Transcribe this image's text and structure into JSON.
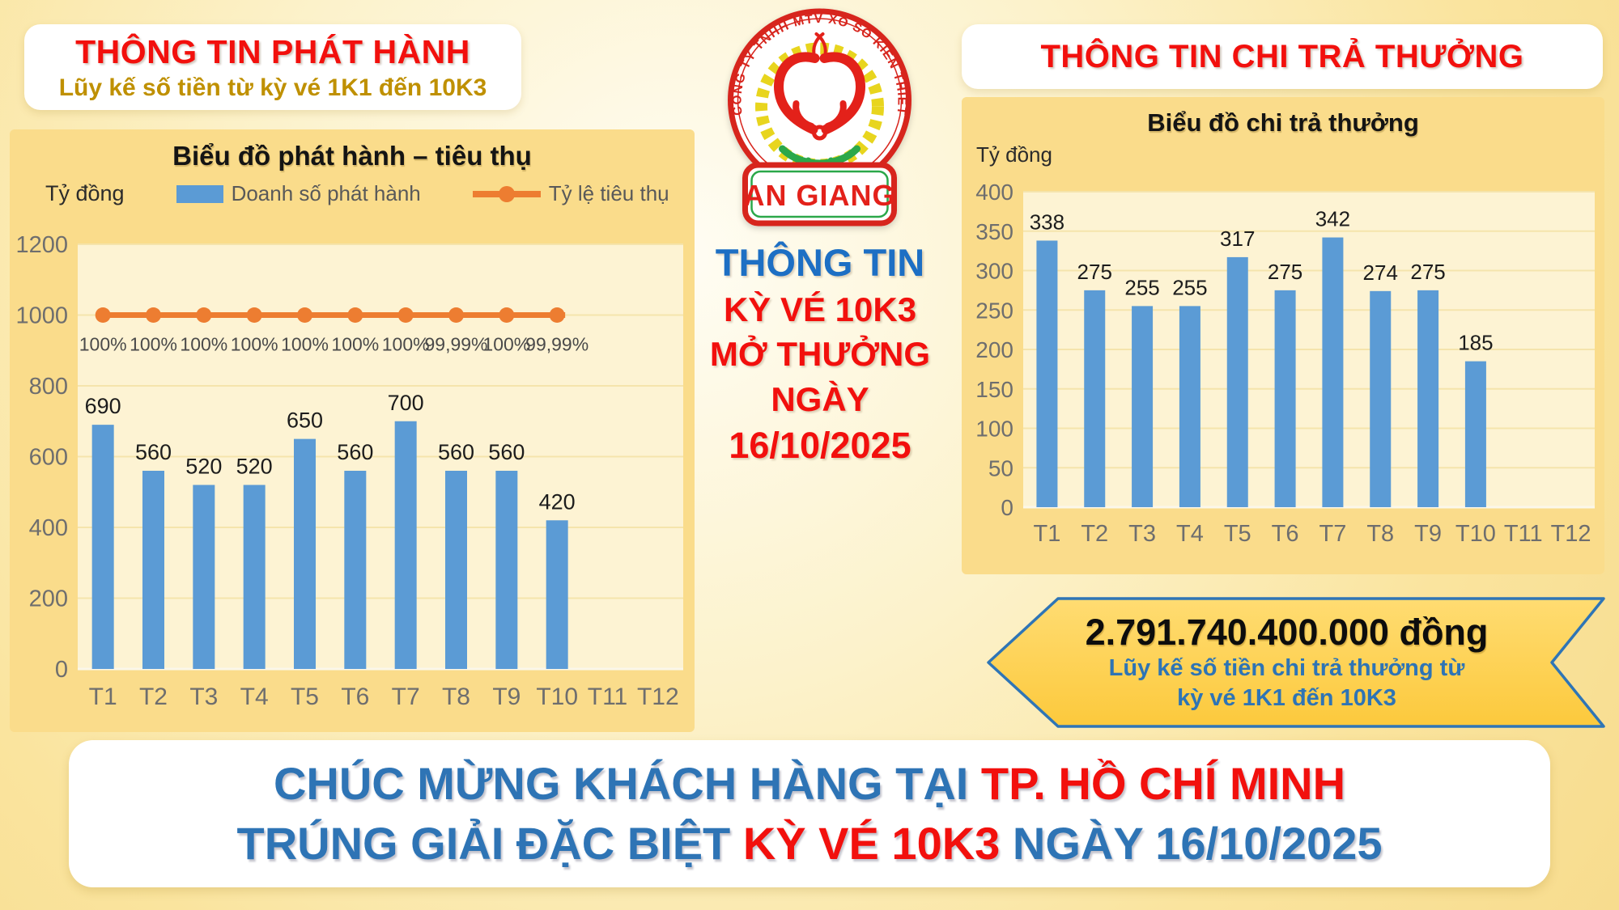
{
  "release_section": {
    "title": "THÔNG TIN PHÁT HÀNH",
    "subtitle": "Lũy kế số tiền từ kỳ vé 1K1 đến 10K3"
  },
  "payout_section": {
    "title": "THÔNG TIN CHI TRẢ THƯỞNG",
    "total_amount": "2.791.740.400.000 đồng",
    "total_caption_line1": "Lũy kế số tiền chi trả thưởng từ",
    "total_caption_line2": "kỳ vé 1K1 đến 10K3"
  },
  "center": {
    "logo_ring_text": "CÔNG TY TNHH MTV XỔ SỐ KIẾN THIẾT",
    "logo_name": "AN GIANG",
    "info_lines": [
      "THÔNG TIN",
      "KỲ VÉ 10K3",
      "MỞ THƯỞNG",
      "NGÀY",
      "16/10/2025"
    ]
  },
  "congrats": {
    "line1_blue": "CHÚC MỪNG KHÁCH HÀNG TẠI",
    "line1_red": "TP. HỒ CHÍ MINH",
    "line2_blue_1": "TRÚNG GIẢI ĐẶC BIỆT",
    "line2_red": "KỲ VÉ 10K3",
    "line2_blue_2": "NGÀY 16/10/2025"
  },
  "colors": {
    "accent-red": "#F2100D",
    "gold-text": "#BF9000",
    "blue-heading": "#1D6FC4",
    "blue-text": "#2E74B5",
    "bar-blue": "#5B9BD5",
    "line-orange": "#ED7D31",
    "panel-yellow": "#FADC8B",
    "plot-cream": "#FDF3D3",
    "grid-line": "#F5E4AC",
    "banner-gold": "#FFD75A",
    "banner-border": "#2E75B6",
    "axis-gray": "#6e6e6e",
    "logo-red": "#D7251D",
    "logo-green": "#2BA84A",
    "logo-wheat": "#E8D51E"
  },
  "chart_data": [
    {
      "type": "bar",
      "title": "Biểu đồ phát hành – tiêu thụ",
      "unit_label": "Tỷ đồng",
      "categories": [
        "T1",
        "T2",
        "T3",
        "T4",
        "T5",
        "T6",
        "T7",
        "T8",
        "T9",
        "T10",
        "T11",
        "T12"
      ],
      "series": [
        {
          "name": "Doanh số phát hành",
          "type": "bar",
          "color": "#5B9BD5",
          "values": [
            690,
            560,
            520,
            520,
            650,
            560,
            700,
            560,
            560,
            420,
            null,
            null
          ]
        },
        {
          "name": "Tỷ lệ tiêu thụ",
          "type": "line",
          "color": "#ED7D31",
          "plotted_at_axis_value": 1000,
          "labels": [
            "100%",
            "100%",
            "100%",
            "100%",
            "100%",
            "100%",
            "100%",
            "99,99%",
            "100%",
            "99,99%",
            null,
            null
          ]
        }
      ],
      "ylim": [
        0,
        1200
      ],
      "ytick_step": 200,
      "grid": true,
      "legend_position": "top"
    },
    {
      "type": "bar",
      "title": "Biểu đồ chi trả thưởng",
      "unit_label": "Tỷ đồng",
      "categories": [
        "T1",
        "T2",
        "T3",
        "T4",
        "T5",
        "T6",
        "T7",
        "T8",
        "T9",
        "T10",
        "T11",
        "T12"
      ],
      "values": [
        338,
        275,
        255,
        255,
        317,
        275,
        342,
        274,
        275,
        185,
        null,
        null
      ],
      "bar_color": "#5B9BD5",
      "ylim": [
        0,
        400
      ],
      "ytick_step": 50,
      "grid": true,
      "legend_position": "none"
    }
  ]
}
